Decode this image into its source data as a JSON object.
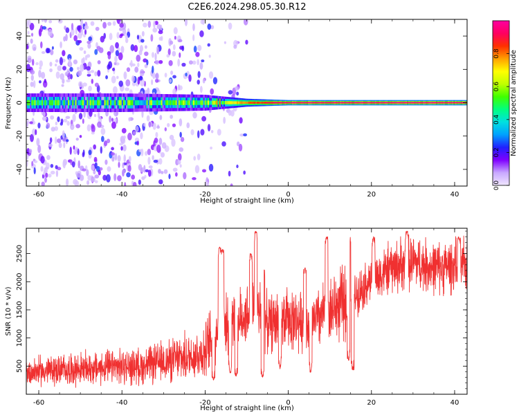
{
  "title": "C2E6.2024.298.05.30.R12",
  "chart_data": [
    {
      "type": "heatmap",
      "xlabel": "Height of straight line (km)",
      "ylabel": "Frequency (Hz)",
      "xlim": [
        -63,
        43
      ],
      "ylim": [
        -50,
        50
      ],
      "x_ticks": [
        "-60",
        "-40",
        "-20",
        "0",
        "20",
        "40"
      ],
      "y_ticks": [
        "40",
        "20",
        "0",
        "-20",
        "-40"
      ],
      "colorbar": {
        "label": "Normalized spectral amplitude",
        "range": [
          0,
          1
        ],
        "ticks": [
          "0.0",
          "0.2",
          "0.4",
          "0.6",
          "0.8"
        ],
        "colormap": [
          "#f0e6ff",
          "#c8a8ff",
          "#7f00ff",
          "#2020ff",
          "#00a0ff",
          "#00e0e0",
          "#00ff80",
          "#40ff00",
          "#c0ff00",
          "#ffff00",
          "#ffa000",
          "#ff3000",
          "#ff0060",
          "#ff00a0"
        ]
      },
      "ridge": {
        "frequency_hz": 0,
        "profile": [
          {
            "height_km": -63,
            "amplitude": 0.45,
            "half_width_hz": 3.5
          },
          {
            "height_km": -40,
            "amplitude": 0.45,
            "half_width_hz": 3.5
          },
          {
            "height_km": -20,
            "amplitude": 0.5,
            "half_width_hz": 3.0
          },
          {
            "height_km": -10,
            "amplitude": 0.8,
            "half_width_hz": 1.5
          },
          {
            "height_km": 0,
            "amplitude": 0.95,
            "half_width_hz": 1.0
          },
          {
            "height_km": 43,
            "amplitude": 0.95,
            "half_width_hz": 1.0
          }
        ],
        "noise_extent_km": [
          -63,
          -15
        ]
      }
    },
    {
      "type": "line",
      "xlabel": "Height of straight line (km)",
      "ylabel": "SNR (10 * v/v)",
      "xlim": [
        -63,
        43
      ],
      "ylim": [
        0,
        2950
      ],
      "x_ticks": [
        "-60",
        "-40",
        "-20",
        "0",
        "20",
        "40"
      ],
      "y_ticks": [
        "500",
        "1000",
        "1500",
        "2000",
        "2500"
      ],
      "color": "#f03030",
      "envelope": [
        {
          "height_km": -63,
          "snr": 400
        },
        {
          "height_km": -50,
          "snr": 450
        },
        {
          "height_km": -35,
          "snr": 500
        },
        {
          "height_km": -25,
          "snr": 650
        },
        {
          "height_km": -20,
          "snr": 750
        },
        {
          "height_km": -17,
          "snr": 1200
        },
        {
          "height_km": -12,
          "snr": 1300
        },
        {
          "height_km": -8,
          "snr": 1600
        },
        {
          "height_km": -5,
          "snr": 1250
        },
        {
          "height_km": 0,
          "snr": 1350
        },
        {
          "height_km": 5,
          "snr": 1250
        },
        {
          "height_km": 10,
          "snr": 1500
        },
        {
          "height_km": 15,
          "snr": 1700
        },
        {
          "height_km": 20,
          "snr": 2050
        },
        {
          "height_km": 25,
          "snr": 2250
        },
        {
          "height_km": 30,
          "snr": 2350
        },
        {
          "height_km": 35,
          "snr": 2250
        },
        {
          "height_km": 43,
          "snr": 2300
        }
      ],
      "spikes": [
        {
          "height_km": -16.5,
          "snr": 2620
        },
        {
          "height_km": -15.8,
          "snr": 2580
        },
        {
          "height_km": -9,
          "snr": 2500
        },
        {
          "height_km": -7.8,
          "snr": 2900
        },
        {
          "height_km": -6,
          "snr": 2300
        },
        {
          "height_km": 4,
          "snr": 2250
        },
        {
          "height_km": 9.2,
          "snr": 2800
        },
        {
          "height_km": 14.7,
          "snr": 2820
        },
        {
          "height_km": 20.5,
          "snr": 2800
        },
        {
          "height_km": 28.5,
          "snr": 2900
        },
        {
          "height_km": 41,
          "snr": 2800
        }
      ],
      "dips": [
        {
          "height_km": -18,
          "snr": 250
        },
        {
          "height_km": -14,
          "snr": 380
        },
        {
          "height_km": -12.5,
          "snr": 320
        },
        {
          "height_km": -6.2,
          "snr": 300
        },
        {
          "height_km": -2,
          "snr": 450
        },
        {
          "height_km": 5.4,
          "snr": 380
        },
        {
          "height_km": 14.5,
          "snr": 600
        },
        {
          "height_km": 15.5,
          "snr": 430
        }
      ]
    }
  ]
}
